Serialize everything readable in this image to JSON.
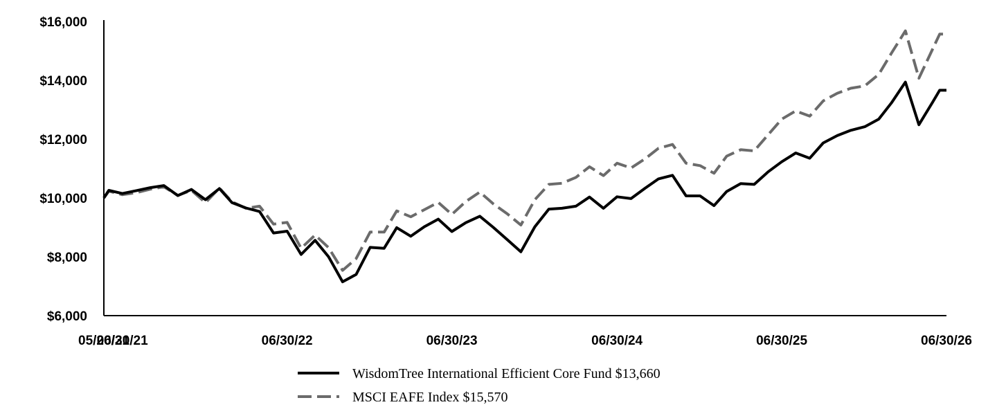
{
  "chart_data": {
    "type": "line",
    "title": "",
    "xlabel": "",
    "ylabel": "",
    "ylim": [
      6000,
      16000
    ],
    "y_ticks": [
      "$6,000",
      "$8,000",
      "$10,000",
      "$12,000",
      "$14,000",
      "$16,000"
    ],
    "y_tick_values": [
      6000,
      8000,
      10000,
      12000,
      14000,
      16000
    ],
    "x_tick_labels": [
      "05/20/21",
      "06/30/21",
      "06/30/22",
      "06/30/23",
      "06/30/24",
      "06/30/25",
      "06/30/26"
    ],
    "x_tick_dates": [
      "2021-05-20",
      "2021-06-30",
      "2022-06-30",
      "2023-06-30",
      "2024-06-30",
      "2025-06-30",
      "2026-06-30"
    ],
    "grid": false,
    "legend_position": "bottom-center",
    "colors": {
      "fund": "#000000",
      "index": "#6b6b6b"
    },
    "series": [
      {
        "name": "WisdomTree International Efficient Core Fund $13,660",
        "style": "solid",
        "points": [
          [
            "2021-05-20",
            10000
          ],
          [
            "2021-05-31",
            10260
          ],
          [
            "2021-06-30",
            10150
          ],
          [
            "2021-07-31",
            10250
          ],
          [
            "2021-08-31",
            10350
          ],
          [
            "2021-09-30",
            10420
          ],
          [
            "2021-10-31",
            10080
          ],
          [
            "2021-11-30",
            10290
          ],
          [
            "2021-12-31",
            9940
          ],
          [
            "2022-01-31",
            10320
          ],
          [
            "2022-02-28",
            9840
          ],
          [
            "2022-03-31",
            9660
          ],
          [
            "2022-04-30",
            9540
          ],
          [
            "2022-05-31",
            8810
          ],
          [
            "2022-06-30",
            8870
          ],
          [
            "2022-07-31",
            8080
          ],
          [
            "2022-08-31",
            8560
          ],
          [
            "2022-09-30",
            8000
          ],
          [
            "2022-10-31",
            7150
          ],
          [
            "2022-11-30",
            7400
          ],
          [
            "2022-12-31",
            8320
          ],
          [
            "2023-01-31",
            8290
          ],
          [
            "2023-02-28",
            8990
          ],
          [
            "2023-03-31",
            8700
          ],
          [
            "2023-04-30",
            9020
          ],
          [
            "2023-05-31",
            9280
          ],
          [
            "2023-06-30",
            8860
          ],
          [
            "2023-07-31",
            9160
          ],
          [
            "2023-08-31",
            9380
          ],
          [
            "2023-09-30",
            9000
          ],
          [
            "2023-10-31",
            8580
          ],
          [
            "2023-11-30",
            8170
          ],
          [
            "2023-12-31",
            9020
          ],
          [
            "2024-01-31",
            9620
          ],
          [
            "2024-02-29",
            9650
          ],
          [
            "2024-03-31",
            9720
          ],
          [
            "2024-04-30",
            10030
          ],
          [
            "2024-05-31",
            9650
          ],
          [
            "2024-06-30",
            10040
          ],
          [
            "2024-07-31",
            9980
          ],
          [
            "2024-08-31",
            10330
          ],
          [
            "2024-09-30",
            10650
          ],
          [
            "2024-10-31",
            10770
          ],
          [
            "2024-11-30",
            10070
          ],
          [
            "2024-12-31",
            10070
          ],
          [
            "2025-01-31",
            9740
          ],
          [
            "2025-02-28",
            10220
          ],
          [
            "2025-03-31",
            10490
          ],
          [
            "2025-04-30",
            10460
          ],
          [
            "2025-05-31",
            10890
          ],
          [
            "2025-06-30",
            11230
          ],
          [
            "2025-07-31",
            11530
          ],
          [
            "2025-08-31",
            11350
          ],
          [
            "2025-09-30",
            11870
          ],
          [
            "2025-10-31",
            12120
          ],
          [
            "2025-11-30",
            12300
          ],
          [
            "2025-12-31",
            12420
          ],
          [
            "2026-01-31",
            12680
          ],
          [
            "2026-02-28",
            13230
          ],
          [
            "2026-03-31",
            13940
          ],
          [
            "2026-04-30",
            12490
          ],
          [
            "2026-05-31",
            13270
          ],
          [
            "2026-06-15",
            13660
          ],
          [
            "2026-06-30",
            13660
          ]
        ]
      },
      {
        "name": "MSCI EAFE Index $15,570",
        "style": "dashed",
        "points": [
          [
            "2021-05-20",
            10000
          ],
          [
            "2021-05-31",
            10230
          ],
          [
            "2021-06-30",
            10110
          ],
          [
            "2021-07-31",
            10180
          ],
          [
            "2021-08-31",
            10300
          ],
          [
            "2021-09-30",
            10380
          ],
          [
            "2021-10-31",
            10090
          ],
          [
            "2021-11-30",
            10260
          ],
          [
            "2021-12-31",
            9840
          ],
          [
            "2022-01-31",
            10340
          ],
          [
            "2022-02-28",
            9870
          ],
          [
            "2022-03-31",
            9650
          ],
          [
            "2022-04-30",
            9720
          ],
          [
            "2022-05-31",
            9110
          ],
          [
            "2022-06-30",
            9170
          ],
          [
            "2022-07-31",
            8290
          ],
          [
            "2022-08-31",
            8740
          ],
          [
            "2022-09-30",
            8310
          ],
          [
            "2022-10-31",
            7540
          ],
          [
            "2022-11-30",
            7940
          ],
          [
            "2022-12-31",
            8840
          ],
          [
            "2023-01-31",
            8840
          ],
          [
            "2023-02-28",
            9560
          ],
          [
            "2023-03-31",
            9360
          ],
          [
            "2023-04-30",
            9600
          ],
          [
            "2023-05-31",
            9850
          ],
          [
            "2023-06-30",
            9440
          ],
          [
            "2023-07-31",
            9880
          ],
          [
            "2023-08-31",
            10200
          ],
          [
            "2023-09-30",
            9800
          ],
          [
            "2023-10-31",
            9460
          ],
          [
            "2023-11-30",
            9080
          ],
          [
            "2023-12-31",
            9940
          ],
          [
            "2024-01-31",
            10460
          ],
          [
            "2024-02-29",
            10500
          ],
          [
            "2024-03-31",
            10700
          ],
          [
            "2024-04-30",
            11060
          ],
          [
            "2024-05-31",
            10760
          ],
          [
            "2024-06-30",
            11180
          ],
          [
            "2024-07-31",
            11020
          ],
          [
            "2024-08-31",
            11330
          ],
          [
            "2024-09-30",
            11690
          ],
          [
            "2024-10-31",
            11820
          ],
          [
            "2024-11-30",
            11180
          ],
          [
            "2024-12-31",
            11100
          ],
          [
            "2025-01-31",
            10840
          ],
          [
            "2025-02-28",
            11420
          ],
          [
            "2025-03-31",
            11640
          ],
          [
            "2025-04-30",
            11600
          ],
          [
            "2025-05-31",
            12150
          ],
          [
            "2025-06-30",
            12680
          ],
          [
            "2025-07-31",
            12960
          ],
          [
            "2025-08-31",
            12780
          ],
          [
            "2025-09-30",
            13300
          ],
          [
            "2025-10-31",
            13560
          ],
          [
            "2025-11-30",
            13730
          ],
          [
            "2025-12-31",
            13810
          ],
          [
            "2026-01-31",
            14200
          ],
          [
            "2026-02-28",
            14920
          ],
          [
            "2026-03-31",
            15680
          ],
          [
            "2026-04-30",
            14070
          ],
          [
            "2026-05-31",
            15080
          ],
          [
            "2026-06-15",
            15570
          ],
          [
            "2026-06-30",
            15570
          ]
        ]
      }
    ]
  }
}
